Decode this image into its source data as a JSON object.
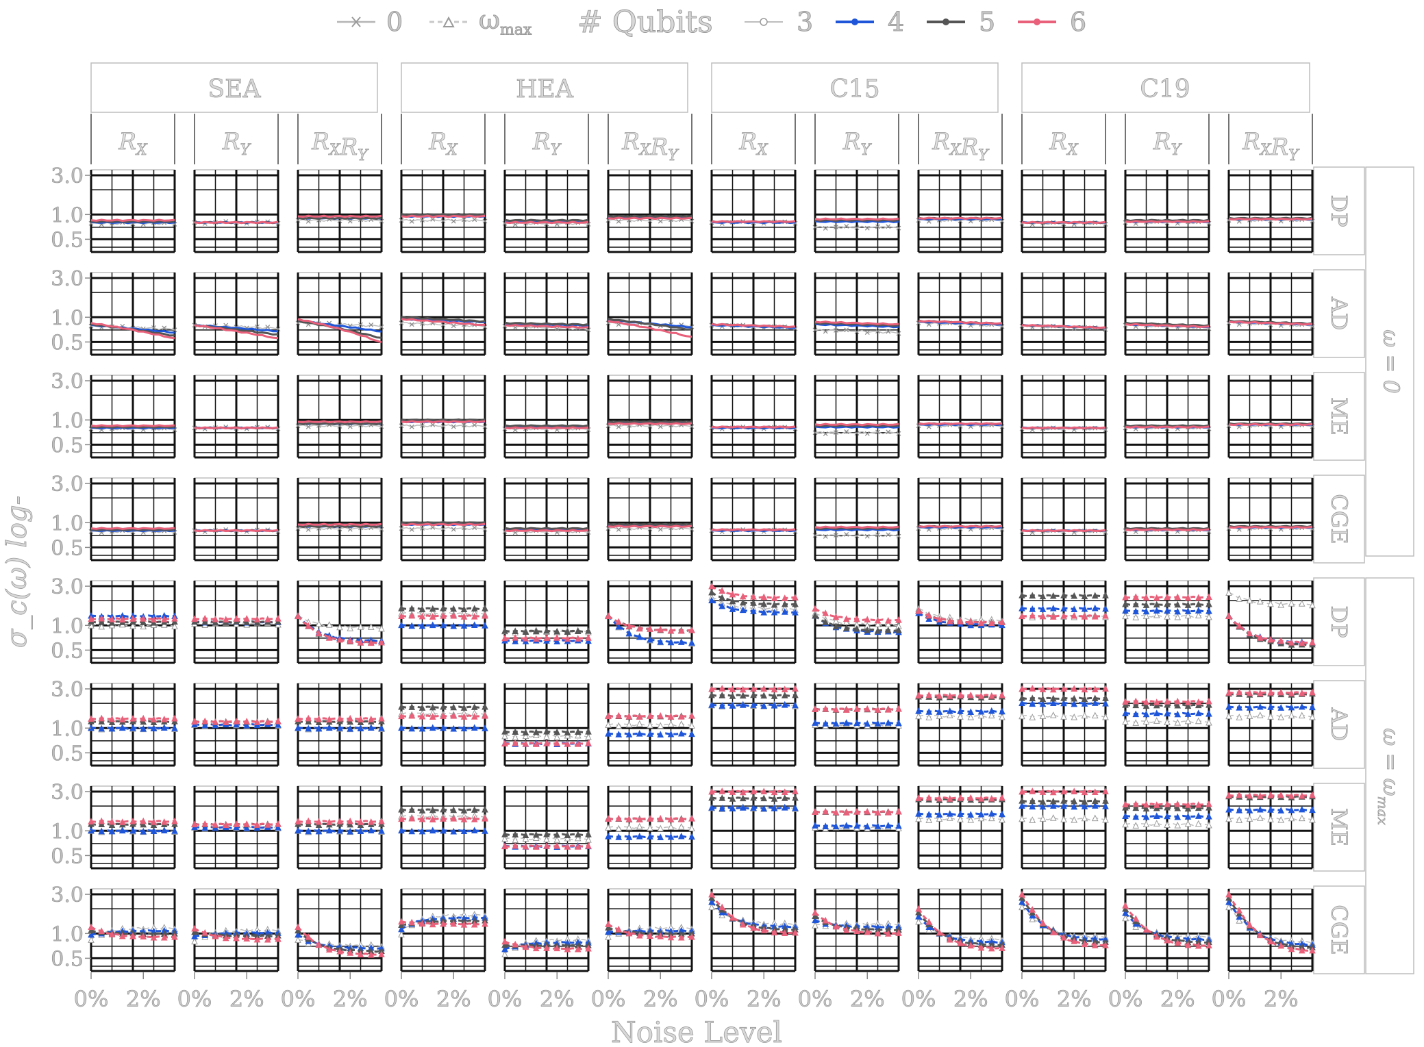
{
  "chart_data": {
    "type": "line",
    "layout": "facet-grid",
    "xlabel": "Noise Level",
    "ylabel": "σ_c(ω) log-",
    "x_tick_labels": [
      "0%",
      "2%"
    ],
    "x_range": [
      0,
      3.2
    ],
    "y_scale": "log",
    "y_ticks": [
      "3.0",
      "1.0",
      "0.5"
    ],
    "y_range": [
      0.35,
      3.5
    ],
    "grid": true,
    "legend_position": "top",
    "legend": {
      "omega_entries": [
        {
          "label": "0",
          "marker": "x",
          "line": "solid"
        },
        {
          "label": "ω_max",
          "marker": "triangle",
          "line": "dashed"
        }
      ],
      "qubits_title": "# Qubits",
      "qubit_entries": [
        {
          "label": "3",
          "color": "#ffffff"
        },
        {
          "label": "4",
          "color": "#1f56d9"
        },
        {
          "label": "5",
          "color": "#555555"
        },
        {
          "label": "6",
          "color": "#e8607a"
        }
      ]
    },
    "ansatz_groups": [
      "SEA",
      "HEA",
      "C15",
      "C19"
    ],
    "encodings": [
      "R_X",
      "R_Y",
      "R_X R_Y"
    ],
    "noise_types": [
      "DP",
      "AD",
      "ME",
      "CGE"
    ],
    "omega_groups": [
      "ω = 0",
      "ω = ω_max"
    ],
    "series_summary": {
      "description_values": "Approximate start and end values (data units) per qubit count (3,4,5,6) for each panel",
      "omega_0": {
        "DP": {
          "SEA": [
            [
              0.78,
              0.8,
              0.82,
              0.85
            ],
            [
              0.8,
              0.8,
              0.8,
              0.8
            ],
            [
              0.85,
              0.9,
              0.9,
              0.95
            ]
          ],
          "HEA": [
            [
              0.85,
              0.95,
              1.0,
              0.95
            ],
            [
              0.78,
              0.82,
              0.85,
              0.8
            ],
            [
              0.85,
              0.92,
              0.95,
              0.9
            ]
          ],
          "C15": [
            [
              0.8,
              0.8,
              0.82,
              0.82
            ],
            [
              0.7,
              0.82,
              0.85,
              0.88
            ],
            [
              0.85,
              0.88,
              0.9,
              0.9
            ]
          ],
          "C19": [
            [
              0.78,
              0.8,
              0.8,
              0.8
            ],
            [
              0.8,
              0.82,
              0.85,
              0.82
            ],
            [
              0.85,
              0.88,
              0.9,
              0.88
            ]
          ]
        },
        "AD_start_end": [
          [
            0.85,
            0.55
          ],
          [
            0.85,
            0.6
          ],
          [
            0.88,
            0.42
          ],
          [
            1.0,
            0.85
          ],
          [
            0.85,
            0.8
          ],
          [
            0.95,
            0.62
          ]
        ]
      },
      "omega_max": {
        "DP": {
          "SEA": [
            [
              1.0,
              1.3,
              1.1,
              1.2
            ],
            [
              1.05,
              1.1,
              1.1,
              1.2
            ],
            [
              1.3,
              0.9,
              0.85,
              0.85
            ]
          ],
          "HEA": [
            [
              1.4,
              1.0,
              1.6,
              1.3
            ],
            [
              0.85,
              0.65,
              0.85,
              0.7
            ],
            [
              0.85,
              0.85,
              1.2,
              1.2
            ]
          ],
          "C15": [
            [
              2.2,
              2.0,
              2.5,
              3.0
            ],
            [
              1.4,
              1.15,
              1.2,
              1.6
            ],
            [
              1.6,
              1.4,
              1.5,
              1.5
            ]
          ],
          "C19": [
            [
              1.3,
              1.6,
              2.3,
              1.3
            ],
            [
              1.3,
              1.5,
              1.8,
              2.2
            ],
            [
              2.5,
              0.85,
              0.8,
              0.85
            ]
          ]
        },
        "AD": {
          "SEA": [
            [
              1.0,
              1.0,
              1.2,
              1.3
            ],
            [
              1.1,
              1.1,
              1.2,
              1.2
            ],
            [
              1.0,
              1.0,
              1.2,
              1.3
            ]
          ],
          "HEA": [
            [
              1.5,
              1.0,
              1.8,
              1.4
            ],
            [
              0.8,
              0.65,
              0.9,
              0.65
            ],
            [
              1.1,
              0.85,
              1.4,
              1.4
            ]
          ],
          "C15": [
            [
              1.9,
              1.9,
              2.5,
              3.0
            ],
            [
              1.1,
              1.15,
              1.7,
              1.7
            ],
            [
              1.4,
              1.6,
              2.4,
              2.5
            ]
          ],
          "C19": [
            [
              1.4,
              2.0,
              2.3,
              3.0
            ],
            [
              1.2,
              1.5,
              1.9,
              2.1
            ],
            [
              1.4,
              1.8,
              2.6,
              2.7
            ]
          ]
        },
        "ME": {
          "SEA": [
            [
              1.0,
              1.0,
              1.2,
              1.3
            ],
            [
              1.1,
              1.1,
              1.2,
              1.2
            ],
            [
              1.0,
              1.0,
              1.2,
              1.3
            ]
          ],
          "HEA": [
            [
              1.5,
              1.0,
              1.8,
              1.4
            ],
            [
              0.8,
              0.65,
              0.9,
              0.65
            ],
            [
              1.1,
              0.85,
              1.4,
              1.4
            ]
          ],
          "C15": [
            [
              1.9,
              1.9,
              2.5,
              3.0
            ],
            [
              1.1,
              1.15,
              1.7,
              1.7
            ],
            [
              1.4,
              1.6,
              2.4,
              2.5
            ]
          ],
          "C19": [
            [
              1.4,
              2.0,
              2.3,
              3.0
            ],
            [
              1.2,
              1.5,
              1.9,
              2.1
            ],
            [
              1.4,
              1.8,
              2.6,
              2.7
            ]
          ]
        },
        "CGE_start_end": [
          [
            1.2,
            0.9
          ],
          [
            1.15,
            0.85
          ],
          [
            1.2,
            0.55
          ],
          [
            1.4,
            1.3
          ],
          [
            0.8,
            0.65
          ],
          [
            1.3,
            0.9
          ],
          [
            3.0,
            1.0
          ],
          [
            1.8,
            1.0
          ],
          [
            2.0,
            0.65
          ],
          [
            3.0,
            0.7
          ],
          [
            2.2,
            0.7
          ],
          [
            3.0,
            0.6
          ]
        ]
      }
    }
  }
}
